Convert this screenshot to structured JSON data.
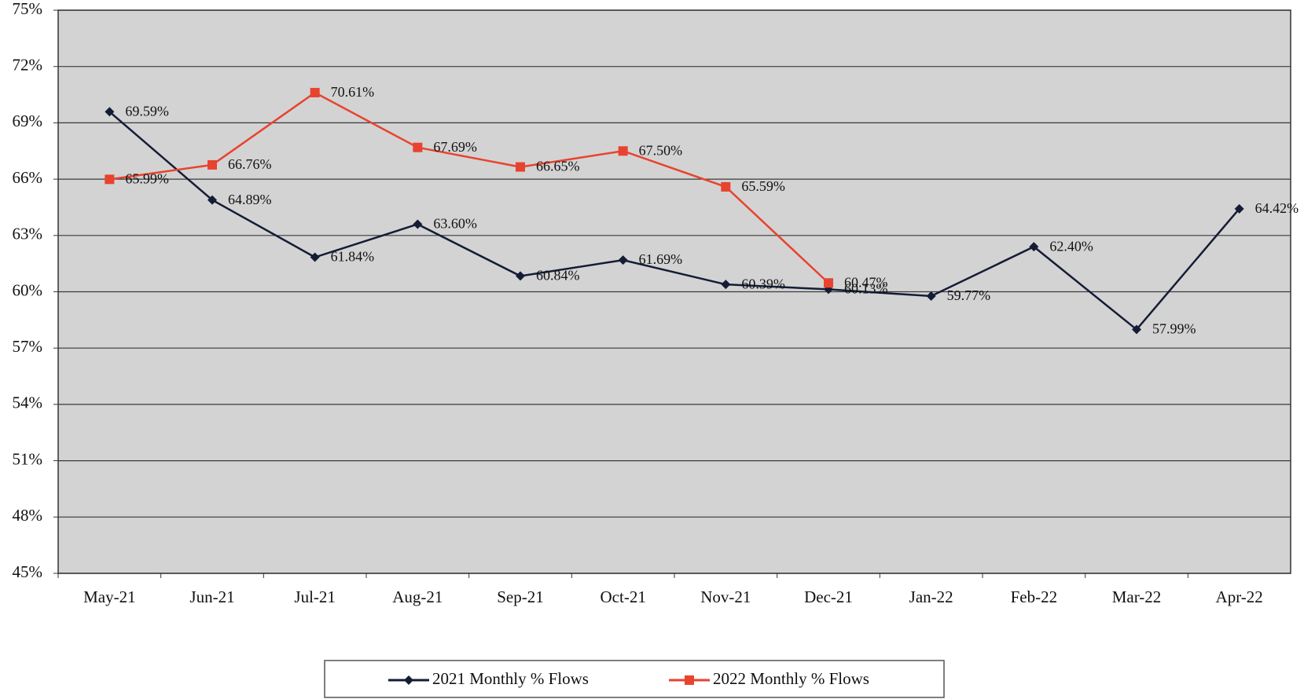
{
  "chart_data": {
    "type": "line",
    "categories": [
      "May-21",
      "Jun-21",
      "Jul-21",
      "Aug-21",
      "Sep-21",
      "Oct-21",
      "Nov-21",
      "Dec-21",
      "Jan-22",
      "Feb-22",
      "Mar-22",
      "Apr-22"
    ],
    "series": [
      {
        "name": "2021 Monthly % Flows",
        "color": "#141c36",
        "marker": "diamond",
        "values": [
          69.59,
          64.89,
          61.84,
          63.6,
          60.84,
          61.69,
          60.39,
          60.13,
          59.77,
          62.4,
          57.99,
          64.42
        ],
        "value_labels": [
          "69.59%",
          "64.89%",
          "61.84%",
          "63.60%",
          "60.84%",
          "61.69%",
          "60.39%",
          "60.13%",
          "59.77%",
          "62.40%",
          "57.99%",
          "64.42%"
        ]
      },
      {
        "name": "2022 Monthly % Flows",
        "color": "#e8432e",
        "marker": "square",
        "values": [
          65.99,
          66.76,
          70.61,
          67.69,
          66.65,
          67.5,
          65.59,
          60.47,
          null,
          null,
          null,
          null
        ],
        "value_labels": [
          "65.99%",
          "66.76%",
          "70.61%",
          "67.69%",
          "66.65%",
          "67.50%",
          "65.59%",
          "60.47%",
          null,
          null,
          null,
          null
        ]
      }
    ],
    "ylim": [
      45,
      75
    ],
    "yticks": [
      {
        "value": 45,
        "label": "45%"
      },
      {
        "value": 48,
        "label": "48%"
      },
      {
        "value": 51,
        "label": "51%"
      },
      {
        "value": 54,
        "label": "54%"
      },
      {
        "value": 57,
        "label": "57%"
      },
      {
        "value": 60,
        "label": "60%"
      },
      {
        "value": 63,
        "label": "63%"
      },
      {
        "value": 66,
        "label": "66%"
      },
      {
        "value": 69,
        "label": "69%"
      },
      {
        "value": 72,
        "label": "72%"
      },
      {
        "value": 75,
        "label": "75%"
      }
    ],
    "grid": true,
    "legend": "bottom"
  }
}
